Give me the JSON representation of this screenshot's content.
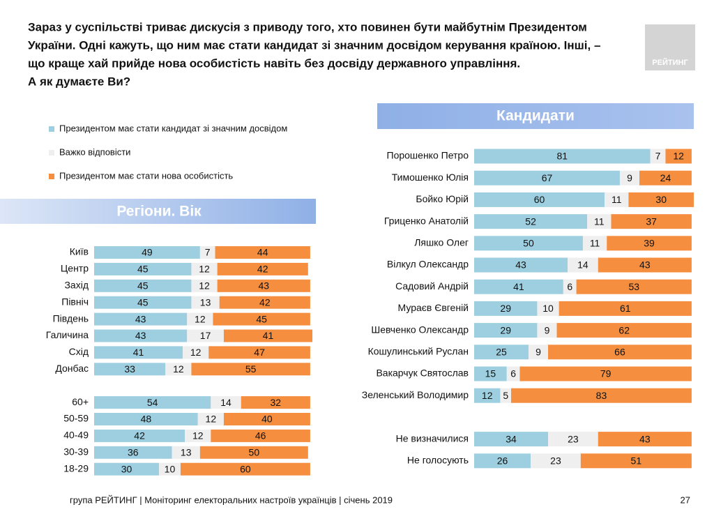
{
  "title": [
    "Зараз у суспільстві триває дискусія з приводу того, хто повинен бути майбутнім Президентом",
    "України. Одні кажуть, що ним має стати кандидат зі значним досвідом керування країною. Інші, –",
    "що краще хай прийде нова особистість навіть без досвіду державного управління.",
    "А як думаєте Ви?"
  ],
  "logo": "РЕЙТИНГ",
  "footer": "група РЕЙТИНГ |  Моніторинг електоральних настроїв українців  |  січень 2019",
  "page_number": 27,
  "chart_data": [
    {
      "type": "stacked-bar",
      "orientation": "horizontal",
      "title": "Регіони. Вік",
      "categories": [
        "Київ",
        "Центр",
        "Захід",
        "Північ",
        "Південь",
        "Галичина",
        "Схід",
        "Донбас",
        null,
        "60+",
        "50-59",
        "40-49",
        "30-39",
        "18-29"
      ],
      "series": [
        {
          "name": "Президентом має стати кандидат зі значним досвідом",
          "color": "#9dcfe0",
          "values": [
            49,
            45,
            45,
            45,
            43,
            43,
            41,
            33,
            null,
            54,
            48,
            42,
            36,
            30
          ]
        },
        {
          "name": "Важко відповісти",
          "color": "#efefef",
          "values": [
            7,
            12,
            12,
            13,
            12,
            17,
            12,
            12,
            null,
            14,
            12,
            12,
            13,
            10
          ]
        },
        {
          "name": "Президентом має стати нова особистість",
          "color": "#f58e3f",
          "values": [
            44,
            42,
            43,
            42,
            45,
            41,
            47,
            55,
            null,
            32,
            40,
            46,
            50,
            60
          ]
        }
      ]
    },
    {
      "type": "stacked-bar",
      "orientation": "horizontal",
      "title": "Кандидати",
      "categories": [
        "Порошенко Петро",
        "Тимошенко Юлія",
        "Бойко Юрій",
        "Гриценко Анатолій",
        "Ляшко Олег",
        "Вілкул Олександр",
        "Садовий Андрій",
        "Мураєв Євгеній",
        "Шевченко Олександр",
        "Кошулинський Руслан",
        "Вакарчук Святослав",
        "Зеленський Володимир",
        null,
        "Не визначилися",
        "Не голосують"
      ],
      "series": [
        {
          "color": "#9dcfe0",
          "values": [
            81,
            67,
            60,
            52,
            50,
            43,
            41,
            29,
            29,
            25,
            15,
            12,
            null,
            34,
            26
          ]
        },
        {
          "color": "#efefef",
          "values": [
            7,
            9,
            11,
            11,
            11,
            14,
            6,
            10,
            9,
            9,
            6,
            5,
            null,
            23,
            23
          ]
        },
        {
          "color": "#f58e3f",
          "values": [
            12,
            24,
            30,
            37,
            39,
            43,
            53,
            61,
            62,
            66,
            79,
            83,
            null,
            43,
            51
          ]
        }
      ]
    }
  ]
}
